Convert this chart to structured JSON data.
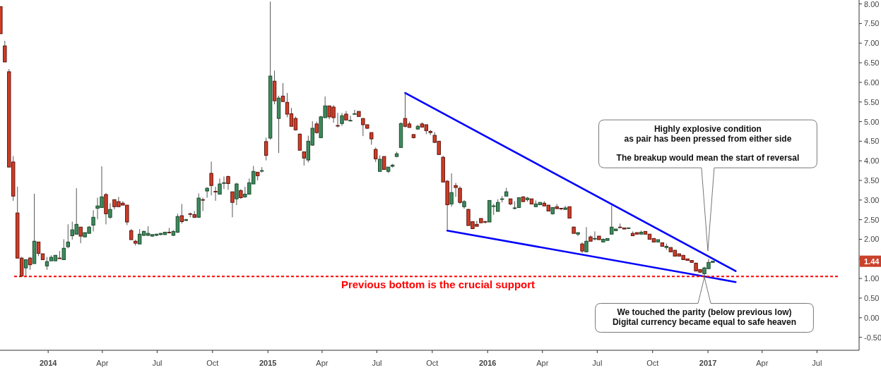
{
  "chart_data": {
    "type": "candlestick",
    "xlim": [
      "2013-10-13",
      "2017-09-09"
    ],
    "xticks": [
      {
        "value": "2014-01-01",
        "label": "2014"
      },
      {
        "value": "2014-04-01",
        "label": "Apr"
      },
      {
        "value": "2014-07-01",
        "label": "Jul"
      },
      {
        "value": "2014-10-01",
        "label": "Oct"
      },
      {
        "value": "2015-01-01",
        "label": "2015"
      },
      {
        "value": "2015-04-01",
        "label": "Apr"
      },
      {
        "value": "2015-07-01",
        "label": "Jul"
      },
      {
        "value": "2015-10-01",
        "label": "Oct"
      },
      {
        "value": "2016-01-01",
        "label": "2016"
      },
      {
        "value": "2016-04-01",
        "label": "Apr"
      },
      {
        "value": "2016-07-01",
        "label": "Jul"
      },
      {
        "value": "2016-10-01",
        "label": "Oct"
      },
      {
        "value": "2017-01-01",
        "label": "2017"
      },
      {
        "value": "2017-04-01",
        "label": "Apr"
      },
      {
        "value": "2017-07-01",
        "label": "Jul"
      }
    ],
    "ylim": [
      -0.83,
      8.1
    ],
    "yticks": [
      {
        "value": -0.5,
        "label": "-0.50"
      },
      {
        "value": 0,
        "label": "0.00"
      },
      {
        "value": 0.5,
        "label": "0.50"
      },
      {
        "value": 1,
        "label": "1.00"
      },
      {
        "value": 1.5,
        "label": null
      },
      {
        "value": 2,
        "label": "2.00"
      },
      {
        "value": 2.5,
        "label": "2.50"
      },
      {
        "value": 3,
        "label": "3.00"
      },
      {
        "value": 3.5,
        "label": "3.50"
      },
      {
        "value": 4,
        "label": "4.00"
      },
      {
        "value": 4.5,
        "label": "4.50"
      },
      {
        "value": 5,
        "label": "5.00"
      },
      {
        "value": 5.5,
        "label": "5.50"
      },
      {
        "value": 6,
        "label": "6.00"
      },
      {
        "value": 6.5,
        "label": "6.50"
      },
      {
        "value": 7,
        "label": "7.00"
      },
      {
        "value": 7.5,
        "label": "7.50"
      },
      {
        "value": 8,
        "label": "8.00"
      }
    ],
    "grid": false,
    "series": [
      {
        "type": "line",
        "color": "#0000ff",
        "x": [
          "2015-08-17",
          "2017-02-16"
        ],
        "values": [
          5.73,
          1.19
        ]
      },
      {
        "type": "line",
        "color": "#0000ff",
        "x": [
          "2015-10-26",
          "2017-02-16"
        ],
        "values": [
          2.22,
          0.91
        ]
      },
      {
        "type": "candlestick",
        "x": [
          "2013-10-14",
          "2013-10-21",
          "2013-10-28",
          "2013-11-04",
          "2013-11-11",
          "2013-11-18",
          "2013-11-25",
          "2013-12-02",
          "2013-12-09",
          "2013-12-16",
          "2013-12-23",
          "2013-12-30",
          "2014-01-06",
          "2014-01-13",
          "2014-01-20",
          "2014-01-27",
          "2014-02-03",
          "2014-02-10",
          "2014-02-17",
          "2014-02-24",
          "2014-03-03",
          "2014-03-10",
          "2014-03-17",
          "2014-03-24",
          "2014-03-31",
          "2014-04-07",
          "2014-04-14",
          "2014-04-21",
          "2014-04-28",
          "2014-05-05",
          "2014-05-12",
          "2014-05-19",
          "2014-05-26",
          "2014-06-02",
          "2014-06-09",
          "2014-06-16",
          "2014-06-23",
          "2014-06-30",
          "2014-07-07",
          "2014-07-14",
          "2014-07-21",
          "2014-07-28",
          "2014-08-04",
          "2014-08-11",
          "2014-08-18",
          "2014-08-25",
          "2014-09-01",
          "2014-09-08",
          "2014-09-15",
          "2014-09-22",
          "2014-09-29",
          "2014-10-06",
          "2014-10-13",
          "2014-10-20",
          "2014-10-27",
          "2014-11-03",
          "2014-11-10",
          "2014-11-17",
          "2014-11-24",
          "2014-12-01",
          "2014-12-08",
          "2014-12-15",
          "2014-12-22",
          "2014-12-29",
          "2015-01-05",
          "2015-01-12",
          "2015-01-19",
          "2015-01-26",
          "2015-02-02",
          "2015-02-09",
          "2015-02-16",
          "2015-02-23",
          "2015-03-02",
          "2015-03-09",
          "2015-03-16",
          "2015-03-23",
          "2015-03-30",
          "2015-04-06",
          "2015-04-13",
          "2015-04-20",
          "2015-04-27",
          "2015-05-04",
          "2015-05-11",
          "2015-05-18",
          "2015-05-25",
          "2015-06-01",
          "2015-06-08",
          "2015-06-15",
          "2015-06-22",
          "2015-06-29",
          "2015-07-06",
          "2015-07-13",
          "2015-07-20",
          "2015-07-27",
          "2015-08-03",
          "2015-08-10",
          "2015-08-17",
          "2015-08-24",
          "2015-08-31",
          "2015-09-07",
          "2015-09-14",
          "2015-09-21",
          "2015-09-28",
          "2015-10-05",
          "2015-10-12",
          "2015-10-19",
          "2015-10-26",
          "2015-11-02",
          "2015-11-09",
          "2015-11-16",
          "2015-11-23",
          "2015-11-30",
          "2015-12-07",
          "2015-12-14",
          "2015-12-21",
          "2015-12-28",
          "2016-01-04",
          "2016-01-11",
          "2016-01-18",
          "2016-01-25",
          "2016-02-01",
          "2016-02-08",
          "2016-02-15",
          "2016-02-22",
          "2016-02-29",
          "2016-03-07",
          "2016-03-14",
          "2016-03-21",
          "2016-03-28",
          "2016-04-04",
          "2016-04-11",
          "2016-04-18",
          "2016-04-25",
          "2016-05-02",
          "2016-05-09",
          "2016-05-16",
          "2016-05-23",
          "2016-05-30",
          "2016-06-06",
          "2016-06-13",
          "2016-06-20",
          "2016-06-27",
          "2016-07-04",
          "2016-07-11",
          "2016-07-18",
          "2016-07-25",
          "2016-08-01",
          "2016-08-08",
          "2016-08-15",
          "2016-08-22",
          "2016-08-29",
          "2016-09-05",
          "2016-09-12",
          "2016-09-19",
          "2016-09-26",
          "2016-10-03",
          "2016-10-10",
          "2016-10-17",
          "2016-10-24",
          "2016-10-31",
          "2016-11-07",
          "2016-11-14",
          "2016-11-21",
          "2016-11-28",
          "2016-12-05",
          "2016-12-12",
          "2016-12-19",
          "2016-12-26",
          "2017-01-02",
          "2017-01-09"
        ],
        "ohlc": [
          [
            7.93,
            7.93,
            7.24,
            7.24
          ],
          [
            6.93,
            7.06,
            6.52,
            6.52
          ],
          [
            6.27,
            6.34,
            3.84,
            3.84
          ],
          [
            3.97,
            4.12,
            2.98,
            3.1
          ],
          [
            2.67,
            3.34,
            1.52,
            1.52
          ],
          [
            1.52,
            1.55,
            1.06,
            1.06
          ],
          [
            1.27,
            1.48,
            1.06,
            1.48
          ],
          [
            1.52,
            1.55,
            1.22,
            1.35
          ],
          [
            1.38,
            3.16,
            1.38,
            1.95
          ],
          [
            1.93,
            1.93,
            1.57,
            1.64
          ],
          [
            1.63,
            1.63,
            1.48,
            1.48
          ],
          [
            1.32,
            1.55,
            1.22,
            1.43
          ],
          [
            1.45,
            1.59,
            1.45,
            1.54
          ],
          [
            1.45,
            1.6,
            1.45,
            1.59
          ],
          [
            1.52,
            1.7,
            1.51,
            1.51
          ],
          [
            1.48,
            2.0,
            1.48,
            1.77
          ],
          [
            1.81,
            2.38,
            1.77,
            1.93
          ],
          [
            2.09,
            2.45,
            1.99,
            2.24
          ],
          [
            2.13,
            3.3,
            2.12,
            2.38
          ],
          [
            2.31,
            2.31,
            1.9,
            2.08
          ],
          [
            2.06,
            2.17,
            2.06,
            2.17
          ],
          [
            2.15,
            2.34,
            2.15,
            2.31
          ],
          [
            2.36,
            2.74,
            2.2,
            2.56
          ],
          [
            2.79,
            3.06,
            2.51,
            2.85
          ],
          [
            2.81,
            3.86,
            2.81,
            3.08
          ],
          [
            3.14,
            3.18,
            2.38,
            2.65
          ],
          [
            2.56,
            2.92,
            2.52,
            2.76
          ],
          [
            3.01,
            3.01,
            2.76,
            2.83
          ],
          [
            2.96,
            3.08,
            2.83,
            2.83
          ],
          [
            2.92,
            2.97,
            2.87,
            2.87
          ],
          [
            2.87,
            2.87,
            2.36,
            2.44
          ],
          [
            2.22,
            2.26,
            1.99,
            1.99
          ],
          [
            1.95,
            1.99,
            1.84,
            1.9
          ],
          [
            1.88,
            2.26,
            1.88,
            2.13
          ],
          [
            2.1,
            2.22,
            2.08,
            2.2
          ],
          [
            2.1,
            2.33,
            2.08,
            2.15
          ],
          [
            2.08,
            2.12,
            2.06,
            2.12
          ],
          [
            2.1,
            2.14,
            2.08,
            2.13
          ],
          [
            2.12,
            2.16,
            2.1,
            2.15
          ],
          [
            2.12,
            2.19,
            2.11,
            2.18
          ],
          [
            2.18,
            2.29,
            2.15,
            2.17
          ],
          [
            2.1,
            2.23,
            2.08,
            2.2
          ],
          [
            2.18,
            2.65,
            2.16,
            2.58
          ],
          [
            2.6,
            2.9,
            2.4,
            2.45
          ],
          [
            2.48,
            2.52,
            2.46,
            2.5
          ],
          [
            2.65,
            2.68,
            2.56,
            2.64
          ],
          [
            2.63,
            2.72,
            2.54,
            2.56
          ],
          [
            2.56,
            3.17,
            2.56,
            3.05
          ],
          [
            3.01,
            3.06,
            2.72,
            3.0
          ],
          [
            3.23,
            3.33,
            3.06,
            3.3
          ],
          [
            3.68,
            3.98,
            3.12,
            3.37
          ],
          [
            3.22,
            3.34,
            2.98,
            3.21
          ],
          [
            3.15,
            3.55,
            3.15,
            3.41
          ],
          [
            3.43,
            3.6,
            3.28,
            3.44
          ],
          [
            3.6,
            3.62,
            3.26,
            3.42
          ],
          [
            3.21,
            3.21,
            2.56,
            2.94
          ],
          [
            3.03,
            3.44,
            2.87,
            3.41
          ],
          [
            3.24,
            3.28,
            3.03,
            3.06
          ],
          [
            3.08,
            3.34,
            3.06,
            3.15
          ],
          [
            3.15,
            3.55,
            3.15,
            3.44
          ],
          [
            3.41,
            3.87,
            3.41,
            3.73
          ],
          [
            3.71,
            3.71,
            3.5,
            3.62
          ],
          [
            3.74,
            3.84,
            3.7,
            3.75
          ],
          [
            4.49,
            4.59,
            4.01,
            4.14
          ],
          [
            4.58,
            8.06,
            4.54,
            6.16
          ],
          [
            6.03,
            6.3,
            5.44,
            5.53
          ],
          [
            5.08,
            5.66,
            4.2,
            5.6
          ],
          [
            5.65,
            5.98,
            5.51,
            5.51
          ],
          [
            5.49,
            5.73,
            5.11,
            5.19
          ],
          [
            5.2,
            5.35,
            4.88,
            4.88
          ],
          [
            5.08,
            5.13,
            4.77,
            4.79
          ],
          [
            4.68,
            4.7,
            4.27,
            4.27
          ],
          [
            4.23,
            4.23,
            3.88,
            4.07
          ],
          [
            4.02,
            4.64,
            3.96,
            4.5
          ],
          [
            4.4,
            5.01,
            4.38,
            4.83
          ],
          [
            4.94,
            5.0,
            4.69,
            4.72
          ],
          [
            4.59,
            5.15,
            4.59,
            5.12
          ],
          [
            5.1,
            5.64,
            5.1,
            5.4
          ],
          [
            5.4,
            5.4,
            5.06,
            5.12
          ],
          [
            5.37,
            5.42,
            4.97,
            5.1
          ],
          [
            4.9,
            5.22,
            4.85,
            4.89
          ],
          [
            4.95,
            5.22,
            4.89,
            5.15
          ],
          [
            5.19,
            5.27,
            5.04,
            5.04
          ],
          [
            5.02,
            5.15,
            5.02,
            5.03
          ],
          [
            5.19,
            5.3,
            5.19,
            5.2
          ],
          [
            5.26,
            5.26,
            5.13,
            5.13
          ],
          [
            5.08,
            5.08,
            4.63,
            4.92
          ],
          [
            4.92,
            4.92,
            4.81,
            4.83
          ],
          [
            4.72,
            4.72,
            4.41,
            4.56
          ],
          [
            4.29,
            4.34,
            3.97,
            4.05
          ],
          [
            3.73,
            4.14,
            3.73,
            4.04
          ],
          [
            4.11,
            4.11,
            3.78,
            3.78
          ],
          [
            3.73,
            3.84,
            3.69,
            3.84
          ],
          [
            3.86,
            3.92,
            3.83,
            3.89
          ],
          [
            4.11,
            4.23,
            4.09,
            4.18
          ],
          [
            4.34,
            4.98,
            4.34,
            4.95
          ],
          [
            5.08,
            5.73,
            4.85,
            4.88
          ],
          [
            4.94,
            5.0,
            4.85,
            4.85
          ],
          [
            4.67,
            4.67,
            4.57,
            4.59
          ],
          [
            4.81,
            4.92,
            4.79,
            4.88
          ],
          [
            4.94,
            4.98,
            4.86,
            4.86
          ],
          [
            4.92,
            4.92,
            4.68,
            4.77
          ],
          [
            4.75,
            4.79,
            4.66,
            4.72
          ],
          [
            4.65,
            4.73,
            4.45,
            4.47
          ],
          [
            4.5,
            4.5,
            4.16,
            4.16
          ],
          [
            4.09,
            4.13,
            3.45,
            3.46
          ],
          [
            3.48,
            3.51,
            2.22,
            2.88
          ],
          [
            2.9,
            3.68,
            2.83,
            3.19
          ],
          [
            3.37,
            3.44,
            3.08,
            3.32
          ],
          [
            3.3,
            3.35,
            2.9,
            2.94
          ],
          [
            2.83,
            3.0,
            2.78,
            2.96
          ],
          [
            2.76,
            2.78,
            2.35,
            2.35
          ],
          [
            2.45,
            2.45,
            2.27,
            2.27
          ],
          [
            2.38,
            2.47,
            2.33,
            2.33
          ],
          [
            2.53,
            2.53,
            2.42,
            2.42
          ],
          [
            2.45,
            2.47,
            2.4,
            2.44
          ],
          [
            2.44,
            2.99,
            2.44,
            2.99
          ],
          [
            2.84,
            2.9,
            2.62,
            2.85
          ],
          [
            2.71,
            3.02,
            2.71,
            2.94
          ],
          [
            3.02,
            3.1,
            2.94,
            3.03
          ],
          [
            3.1,
            3.31,
            3.1,
            3.21
          ],
          [
            3.03,
            3.03,
            2.87,
            2.9
          ],
          [
            2.79,
            2.97,
            2.76,
            2.8
          ],
          [
            2.81,
            3.06,
            2.81,
            3.06
          ],
          [
            3.08,
            3.1,
            2.96,
            2.96
          ],
          [
            3.01,
            3.08,
            2.96,
            3.05
          ],
          [
            3.03,
            3.03,
            2.9,
            2.9
          ],
          [
            2.83,
            2.99,
            2.83,
            2.9
          ],
          [
            2.88,
            2.94,
            2.88,
            2.94
          ],
          [
            2.92,
            2.97,
            2.85,
            2.85
          ],
          [
            2.87,
            2.87,
            2.72,
            2.72
          ],
          [
            2.65,
            2.81,
            2.63,
            2.81
          ],
          [
            2.83,
            2.9,
            2.78,
            2.78
          ],
          [
            2.79,
            2.79,
            2.74,
            2.78
          ],
          [
            2.76,
            2.85,
            2.76,
            2.8
          ],
          [
            2.83,
            2.83,
            2.54,
            2.54
          ],
          [
            2.31,
            2.33,
            2.15,
            2.15
          ],
          [
            2.13,
            2.17,
            2.08,
            2.17
          ],
          [
            1.88,
            1.92,
            1.65,
            1.7
          ],
          [
            1.68,
            2.31,
            1.68,
            1.95
          ],
          [
            2.06,
            2.1,
            1.95,
            1.95
          ],
          [
            2.01,
            2.2,
            1.97,
            2.02
          ],
          [
            2.08,
            2.08,
            1.99,
            1.99
          ],
          [
            1.93,
            2.02,
            1.93,
            2.0
          ],
          [
            1.97,
            2.02,
            1.97,
            2.02
          ],
          [
            2.13,
            2.86,
            2.13,
            2.31
          ],
          [
            2.22,
            2.27,
            2.22,
            2.26
          ],
          [
            2.31,
            2.4,
            2.3,
            2.3
          ],
          [
            2.29,
            2.29,
            2.26,
            2.26
          ],
          [
            2.28,
            2.29,
            2.26,
            2.29
          ],
          [
            2.15,
            2.2,
            2.09,
            2.09
          ],
          [
            2.17,
            2.17,
            2.13,
            2.13
          ],
          [
            2.13,
            2.22,
            2.13,
            2.18
          ],
          [
            2.2,
            2.2,
            2.13,
            2.13
          ],
          [
            2.13,
            2.13,
            2.0,
            2.0
          ],
          [
            2.02,
            2.02,
            1.93,
            1.93
          ],
          [
            1.93,
            1.99,
            1.93,
            1.99
          ],
          [
            1.91,
            1.91,
            1.82,
            1.82
          ],
          [
            1.79,
            1.89,
            1.73,
            1.82
          ],
          [
            1.79,
            1.79,
            1.68,
            1.68
          ],
          [
            1.72,
            1.72,
            1.57,
            1.57
          ],
          [
            1.63,
            1.63,
            1.57,
            1.57
          ],
          [
            1.59,
            1.6,
            1.48,
            1.48
          ],
          [
            1.5,
            1.5,
            1.46,
            1.46
          ],
          [
            1.46,
            1.46,
            1.41,
            1.41
          ],
          [
            1.39,
            1.41,
            1.19,
            1.19
          ],
          [
            1.23,
            1.23,
            1.14,
            1.16
          ],
          [
            1.12,
            1.3,
            1.03,
            1.27
          ],
          [
            1.25,
            1.5,
            1.25,
            1.41
          ],
          [
            1.41,
            1.45,
            1.41,
            1.44
          ]
        ]
      }
    ],
    "ref_lines": [
      {
        "axis": "y",
        "value": 1.05,
        "label": "Previous bottom is the crucial support",
        "color": "#ff0000",
        "line_style": "dotted"
      }
    ],
    "annotations": [
      "Highly explosive condition\nas pair has been pressed from either side\n\nThe breakup would mean the start of reversal",
      "We touched the parity (below previous low)\nDigital currency became equal to safe heaven",
      {
        "text": "1.44",
        "y": 1.44
      }
    ]
  }
}
